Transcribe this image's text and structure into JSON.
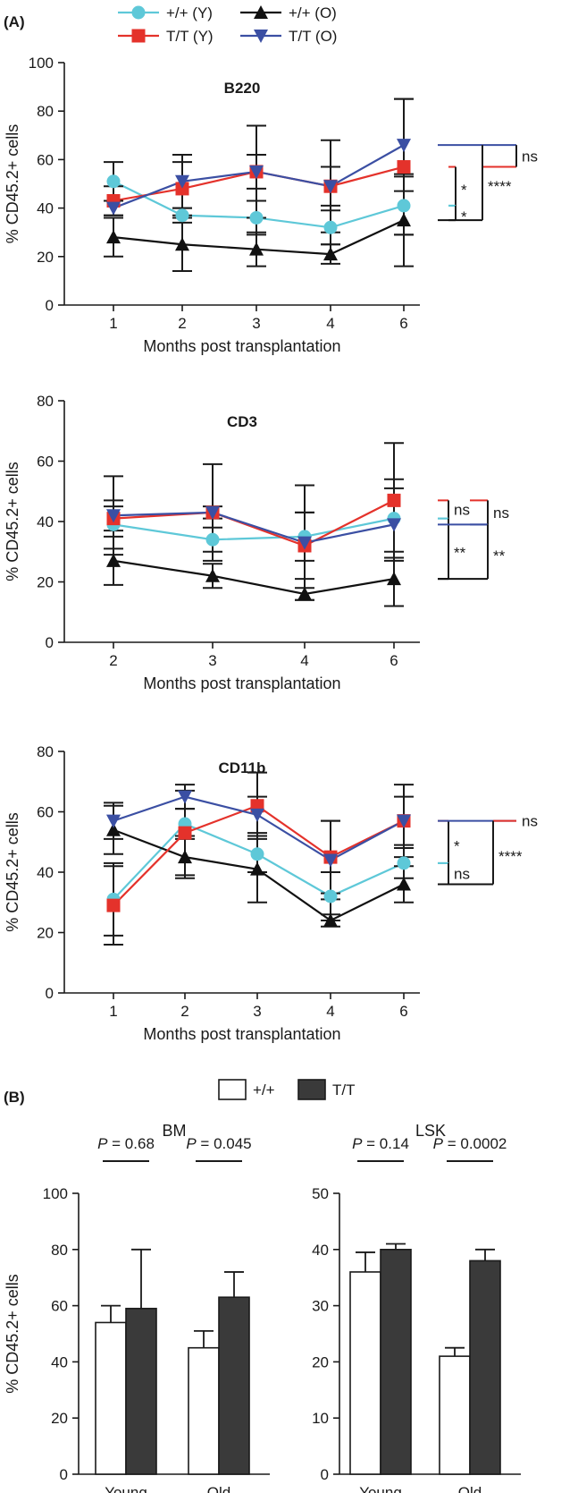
{
  "panel_labels": {
    "A": "(A)",
    "B": "(B)"
  },
  "legend_A": [
    {
      "label": "+/+ (Y)",
      "color": "#5ec8d8",
      "marker": "circle"
    },
    {
      "label": "+/+ (O)",
      "color": "#111111",
      "marker": "triangle-up"
    },
    {
      "label": "T/T (Y)",
      "color": "#e4322b",
      "marker": "square"
    },
    {
      "label": "T/T (O)",
      "color": "#3b4fa3",
      "marker": "triangle-down"
    }
  ],
  "legend_B": [
    {
      "label": "+/+",
      "fill": "#ffffff"
    },
    {
      "label": "T/T",
      "fill": "#3a3a3a"
    }
  ],
  "chart_data": [
    {
      "type": "line",
      "title": "B220",
      "xlabel": "Months post transplantation",
      "ylabel": "% CD45.2+ cells",
      "ylim": [
        0,
        100
      ],
      "yticks": [
        0,
        20,
        40,
        60,
        80,
        100
      ],
      "x": [
        "1",
        "2",
        "3",
        "4",
        "6"
      ],
      "series": [
        {
          "name": "+/+ (Y)",
          "values": [
            51,
            37,
            36,
            32,
            41
          ],
          "err": [
            8,
            3,
            7,
            7,
            12
          ]
        },
        {
          "name": "+/+ (O)",
          "values": [
            28,
            25,
            23,
            21,
            35
          ],
          "err": [
            8,
            11,
            7,
            4,
            19
          ]
        },
        {
          "name": "T/T (Y)",
          "values": [
            43,
            48,
            55,
            49,
            57
          ],
          "err": [
            6,
            11,
            19,
            19,
            28
          ]
        },
        {
          "name": "T/T (O)",
          "values": [
            40,
            51,
            55,
            49,
            66
          ],
          "err": [
            3,
            11,
            7,
            8,
            19
          ]
        }
      ],
      "significance": [
        {
          "label": "ns",
          "between": [
            "T/T (O)",
            "T/T (Y)"
          ]
        },
        {
          "label": "*",
          "between": [
            "T/T (Y)",
            "+/+ (Y)"
          ]
        },
        {
          "label": "*",
          "between": [
            "+/+ (Y)",
            "+/+ (O)"
          ]
        },
        {
          "label": "****",
          "between": [
            "T/T (O)",
            "+/+ (O)"
          ]
        }
      ]
    },
    {
      "type": "line",
      "title": "CD3",
      "xlabel": "Months post transplantation",
      "ylabel": "% CD45.2+ cells",
      "ylim": [
        0,
        80
      ],
      "yticks": [
        0,
        20,
        40,
        60,
        80
      ],
      "x": [
        "2",
        "3",
        "4",
        "6"
      ],
      "series": [
        {
          "name": "+/+ (Y)",
          "values": [
            39,
            34,
            35,
            41
          ],
          "err": [
            8,
            4,
            8,
            13
          ]
        },
        {
          "name": "+/+ (O)",
          "values": [
            27,
            22,
            16,
            21
          ],
          "err": [
            8,
            4,
            2,
            9
          ]
        },
        {
          "name": "T/T (Y)",
          "values": [
            41,
            43,
            32,
            47
          ],
          "err": [
            4,
            16,
            11,
            19
          ]
        },
        {
          "name": "T/T (O)",
          "values": [
            42,
            43,
            33,
            39
          ],
          "err": [
            13,
            2,
            19,
            12
          ]
        }
      ],
      "significance": [
        {
          "label": "ns",
          "between": [
            "T/T (Y)",
            "+/+ (Y)"
          ]
        },
        {
          "label": "ns",
          "between": [
            "T/T (Y)",
            "T/T (O)"
          ]
        },
        {
          "label": "**",
          "between": [
            "+/+ (Y)",
            "+/+ (O)"
          ]
        },
        {
          "label": "**",
          "between": [
            "T/T (O)",
            "+/+ (O)"
          ]
        }
      ]
    },
    {
      "type": "line",
      "title": "CD11b",
      "xlabel": "Months post transplantation",
      "ylabel": "% CD45.2+ cells",
      "ylim": [
        0,
        80
      ],
      "yticks": [
        0,
        20,
        40,
        60,
        80
      ],
      "x": [
        "1",
        "2",
        "3",
        "4",
        "6"
      ],
      "series": [
        {
          "name": "+/+ (Y)",
          "values": [
            31,
            56,
            46,
            32,
            43
          ],
          "err": [
            12,
            5,
            6,
            8,
            5
          ]
        },
        {
          "name": "+/+ (O)",
          "values": [
            54,
            45,
            41,
            24,
            36
          ],
          "err": [
            8,
            7,
            11,
            2,
            6
          ]
        },
        {
          "name": "T/T (Y)",
          "values": [
            29,
            53,
            62,
            45,
            57
          ],
          "err": [
            13,
            14,
            11,
            12,
            12
          ]
        },
        {
          "name": "T/T (O)",
          "values": [
            57,
            65,
            59,
            44,
            57
          ],
          "err": [
            6,
            4,
            6,
            13,
            8
          ]
        }
      ],
      "significance": [
        {
          "label": "ns",
          "between": [
            "T/T (O)",
            "T/T (Y)"
          ]
        },
        {
          "label": "*",
          "between": [
            "T/T (Y)",
            "+/+ (Y)"
          ]
        },
        {
          "label": "ns",
          "between": [
            "+/+ (Y)",
            "+/+ (O)"
          ]
        },
        {
          "label": "****",
          "between": [
            "T/T (O)",
            "+/+ (O)"
          ]
        }
      ]
    },
    {
      "type": "bar",
      "title": "BM",
      "ylabel": "% CD45.2+ cells",
      "ylim": [
        0,
        100
      ],
      "yticks": [
        0,
        20,
        40,
        60,
        80,
        100
      ],
      "categories": [
        "Young",
        "Old"
      ],
      "series": [
        {
          "name": "+/+",
          "values": [
            54,
            45
          ],
          "err": [
            6,
            6
          ]
        },
        {
          "name": "T/T",
          "values": [
            59,
            63
          ],
          "err": [
            21,
            9
          ]
        }
      ],
      "p_prefix": "P",
      "p_values": [
        "= 0.68",
        "= 0.045"
      ]
    },
    {
      "type": "bar",
      "title": "LSK",
      "ylim": [
        0,
        50
      ],
      "yticks": [
        0,
        10,
        20,
        30,
        40,
        50
      ],
      "categories": [
        "Young",
        "Old"
      ],
      "series": [
        {
          "name": "+/+",
          "values": [
            36,
            21
          ],
          "err": [
            3.5,
            1.5
          ]
        },
        {
          "name": "T/T",
          "values": [
            40,
            38
          ],
          "err": [
            1,
            2
          ]
        }
      ],
      "p_prefix": "P",
      "p_values": [
        "= 0.14",
        "= 0.0002"
      ]
    }
  ]
}
